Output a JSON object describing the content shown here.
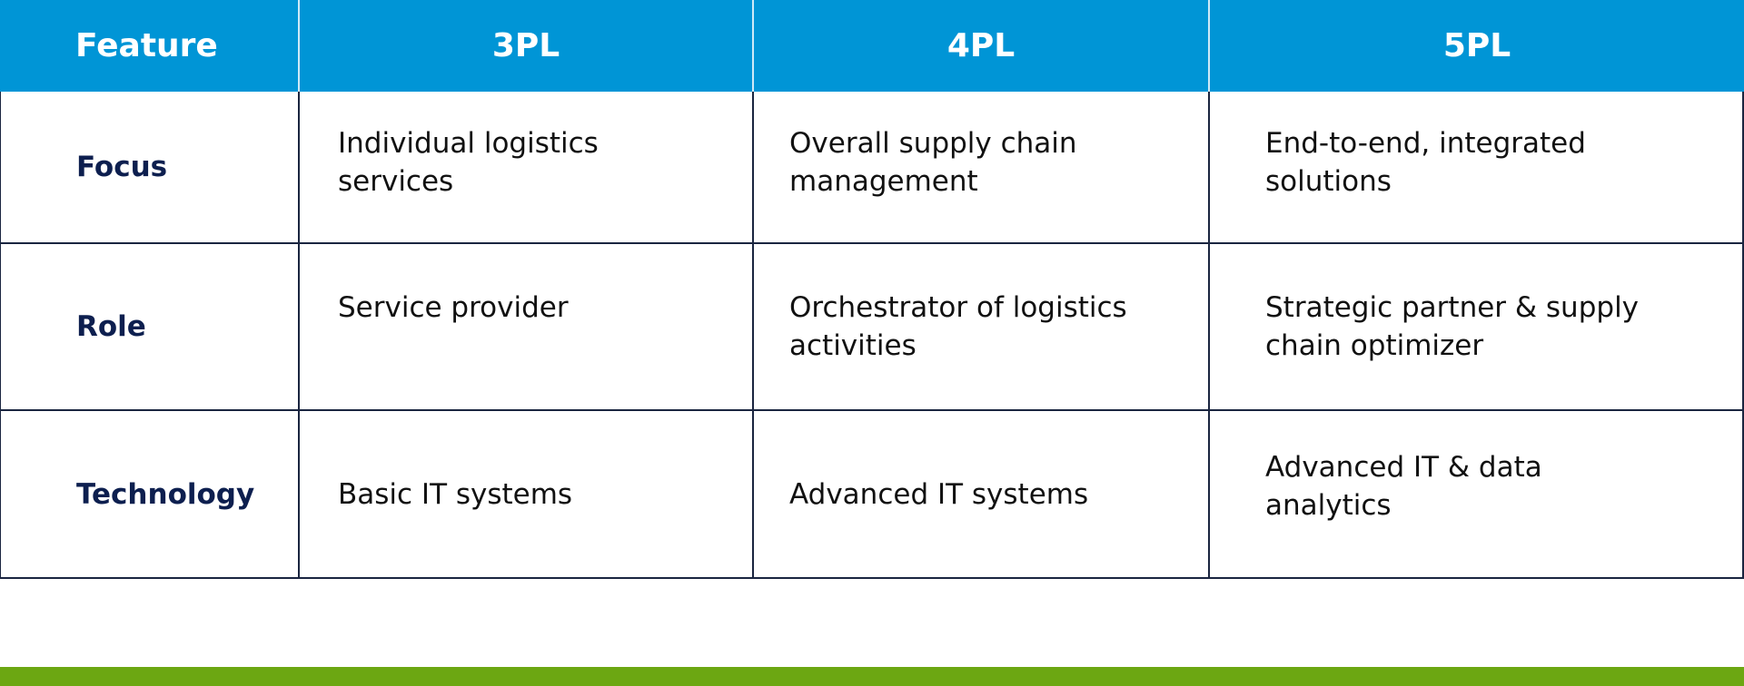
{
  "table": {
    "headers": [
      "Feature",
      "3PL",
      "4PL",
      "5PL"
    ],
    "rows": [
      {
        "feature": "Focus",
        "cells": [
          "Individual logistics services",
          "Overall supply chain management",
          "End-to-end, integrated solutions"
        ]
      },
      {
        "feature": "Role",
        "cells": [
          "Service provider",
          "Orchestrator of logistics activities",
          "Strategic partner & supply chain optimizer"
        ]
      },
      {
        "feature": "Technology",
        "cells": [
          "Basic IT systems",
          "Advanced IT systems",
          "Advanced IT & data analytics"
        ]
      }
    ]
  },
  "colors": {
    "header_bg": "#0095d6",
    "feature_text": "#0d1f4f",
    "footer_bar": "#6ca712"
  }
}
